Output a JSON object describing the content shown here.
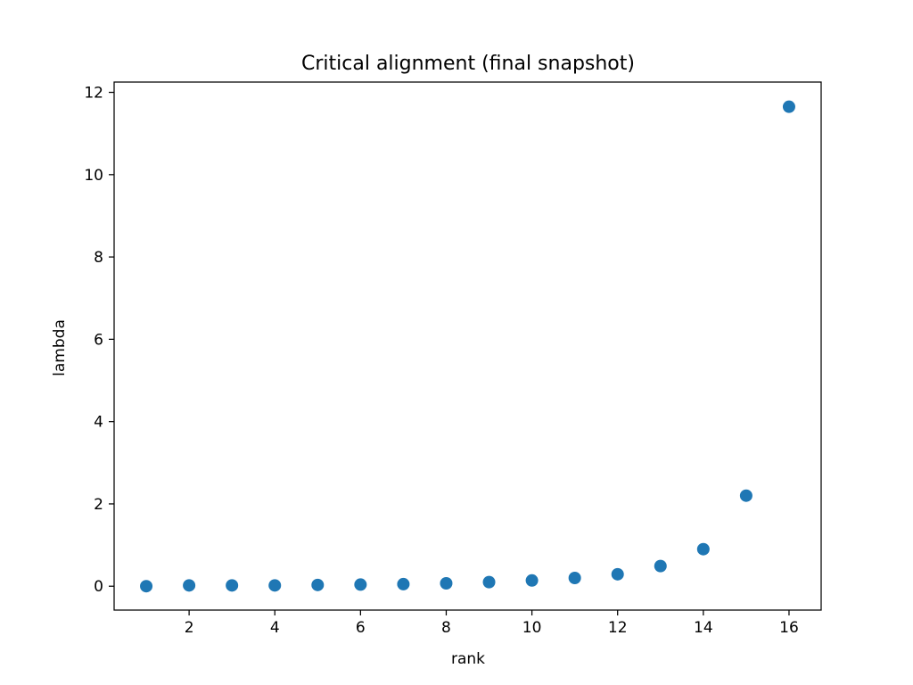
{
  "chart_data": {
    "type": "scatter",
    "title": "Critical alignment (final snapshot)",
    "xlabel": "rank",
    "ylabel": "lambda",
    "xlim": [
      0.25,
      16.75
    ],
    "ylim": [
      -0.58,
      12.25
    ],
    "xticks": [
      2,
      4,
      6,
      8,
      10,
      12,
      14,
      16
    ],
    "yticks": [
      0,
      2,
      4,
      6,
      8,
      10,
      12
    ],
    "grid": false,
    "legend": "none",
    "series": [
      {
        "color": "#1f77b4",
        "x": [
          1,
          2,
          3,
          4,
          5,
          6,
          7,
          8,
          9,
          10,
          11,
          12,
          13,
          14,
          15,
          16
        ],
        "y": [
          0.0,
          0.02,
          0.02,
          0.02,
          0.03,
          0.04,
          0.05,
          0.07,
          0.1,
          0.14,
          0.2,
          0.29,
          0.49,
          0.9,
          2.2,
          11.65
        ]
      }
    ]
  }
}
